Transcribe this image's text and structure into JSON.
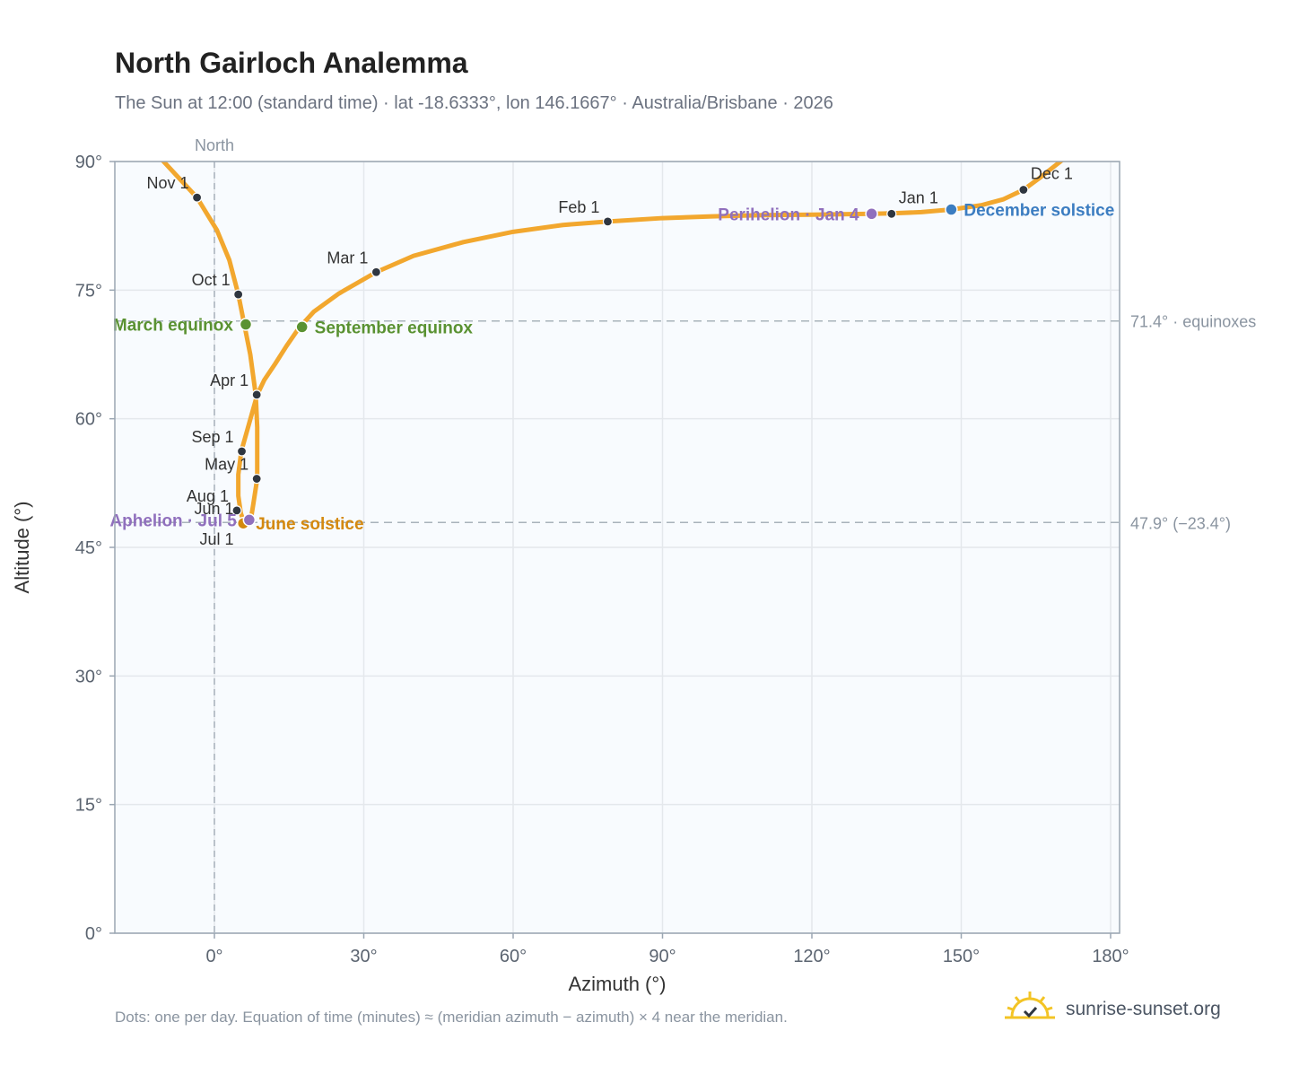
{
  "title": "North Gairloch Analemma",
  "subtitle": "The Sun at 12:00 (standard time) · lat -18.6333°, lon 146.1667° · Australia/Brisbane · 2026",
  "footnote": "Dots: one per day. Equation of time (minutes) ≈ (meridian azimuth − azimuth) × 4 near the meridian.",
  "brand": {
    "name": "sunrise-sunset.org",
    "logo_icon": "sun-logo-icon"
  },
  "colors": {
    "curve": "#f2a72e",
    "month_dot": "#2f3640",
    "equinox": "#5a9232",
    "june_solstice": "#d4890f",
    "december_solstice": "#3c7dc1",
    "apsis": "#9070bd",
    "plot_bg": "#f8fbfe",
    "grid": "#e4e8ec",
    "ref_line": "#a9b3bb"
  },
  "chart_data": {
    "type": "scatter",
    "title": "North Gairloch Analemma",
    "xlabel": "Azimuth (°)",
    "ylabel": "Altitude (°)",
    "xlim": [
      -20,
      182
    ],
    "ylim": [
      0,
      90
    ],
    "xticks": [
      0,
      30,
      60,
      90,
      120,
      150,
      180
    ],
    "xtick_labels": [
      "0°",
      "30°",
      "60°",
      "90°",
      "120°",
      "150°",
      "180°"
    ],
    "yticks": [
      0,
      15,
      30,
      45,
      60,
      75,
      90
    ],
    "ytick_labels": [
      "0°",
      "15°",
      "30°",
      "45°",
      "60°",
      "75°",
      "90°"
    ],
    "grid": true,
    "meridian": {
      "azimuth": 0,
      "label": "North"
    },
    "reference_lines": [
      {
        "altitude": 71.4,
        "label": "71.4° · equinoxes"
      },
      {
        "altitude": 47.9,
        "label": "47.9° (−23.4°)"
      }
    ],
    "analemma_path": [
      [
        -11,
        90.5
      ],
      [
        -3.5,
        85.8
      ],
      [
        0.5,
        82
      ],
      [
        3,
        78.5
      ],
      [
        4.8,
        74.5
      ],
      [
        6,
        71
      ],
      [
        7.2,
        67.5
      ],
      [
        8.3,
        62.8
      ],
      [
        8.6,
        59
      ],
      [
        8.6,
        53
      ],
      [
        7.8,
        50
      ],
      [
        7.3,
        48.2
      ],
      [
        6,
        47.8
      ],
      [
        5.3,
        49
      ],
      [
        4.8,
        51
      ],
      [
        4.8,
        53.5
      ],
      [
        5.4,
        56.2
      ],
      [
        7,
        59.5
      ],
      [
        8.6,
        62.8
      ],
      [
        10,
        64.5
      ],
      [
        12.2,
        66.4
      ],
      [
        14.5,
        68.5
      ],
      [
        17,
        70.6
      ],
      [
        20,
        72.5
      ],
      [
        25,
        74.6
      ],
      [
        32.5,
        77.1
      ],
      [
        40,
        79
      ],
      [
        50,
        80.6
      ],
      [
        60,
        81.8
      ],
      [
        70,
        82.6
      ],
      [
        79,
        83.0
      ],
      [
        90,
        83.4
      ],
      [
        100,
        83.6
      ],
      [
        110,
        83.75
      ],
      [
        120,
        83.8
      ],
      [
        132,
        83.9
      ],
      [
        136,
        83.95
      ],
      [
        142,
        84.1
      ],
      [
        148,
        84.4
      ],
      [
        154,
        84.9
      ],
      [
        158.5,
        85.6
      ],
      [
        162.5,
        86.7
      ],
      [
        166,
        88.2
      ],
      [
        171,
        90.5
      ]
    ],
    "month_markers": [
      {
        "label": "Jan 1",
        "azimuth": 136.0,
        "altitude": 83.9,
        "anchor": "right"
      },
      {
        "label": "Feb 1",
        "azimuth": 79.0,
        "altitude": 83.0,
        "anchor": "left"
      },
      {
        "label": "Mar 1",
        "azimuth": 32.5,
        "altitude": 77.1,
        "anchor": "left"
      },
      {
        "label": "Apr 1",
        "azimuth": 8.5,
        "altitude": 62.8,
        "anchor": "left"
      },
      {
        "label": "May 1",
        "azimuth": 8.5,
        "altitude": 53.0,
        "anchor": "left"
      },
      {
        "label": "Jun 1",
        "azimuth": 5.5,
        "altitude": 47.8,
        "anchor": "left"
      },
      {
        "label": "Jul 1",
        "azimuth": 5.5,
        "altitude": 47.8,
        "anchor": "below-left"
      },
      {
        "label": "Aug 1",
        "azimuth": 4.5,
        "altitude": 49.3,
        "anchor": "left"
      },
      {
        "label": "Sep 1",
        "azimuth": 5.5,
        "altitude": 56.2,
        "anchor": "left"
      },
      {
        "label": "Oct 1",
        "azimuth": 4.8,
        "altitude": 74.5,
        "anchor": "left"
      },
      {
        "label": "Nov 1",
        "azimuth": -3.5,
        "altitude": 85.8,
        "anchor": "left"
      },
      {
        "label": "Dec 1",
        "azimuth": 162.5,
        "altitude": 86.7,
        "anchor": "right"
      }
    ],
    "events": [
      {
        "label": "March equinox",
        "azimuth": 6.3,
        "altitude": 71.0,
        "color_key": "equinox",
        "anchor": "left"
      },
      {
        "label": "September equinox",
        "azimuth": 17.6,
        "altitude": 70.7,
        "color_key": "equinox",
        "anchor": "right"
      },
      {
        "label": "June solstice",
        "azimuth": 5.8,
        "altitude": 47.8,
        "color_key": "june_solstice",
        "anchor": "right"
      },
      {
        "label": "December solstice",
        "azimuth": 148.0,
        "altitude": 84.4,
        "color_key": "december_solstice",
        "anchor": "right"
      },
      {
        "label": "Perihelion · Jan 4",
        "azimuth": 132.0,
        "altitude": 83.9,
        "color_key": "apsis",
        "anchor": "left"
      },
      {
        "label": "Aphelion · Jul 5",
        "azimuth": 7.0,
        "altitude": 48.2,
        "color_key": "apsis",
        "anchor": "left"
      }
    ]
  }
}
